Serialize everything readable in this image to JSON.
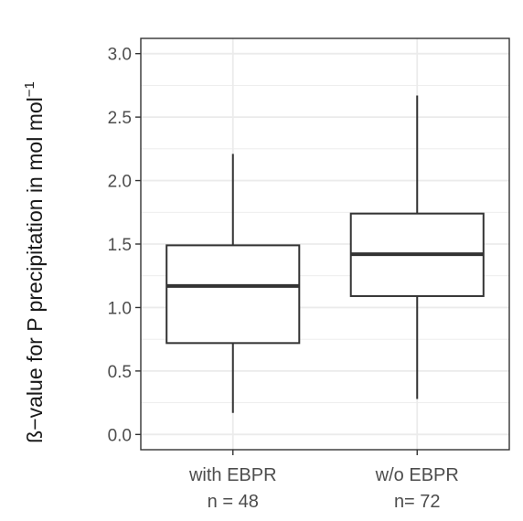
{
  "chart_data": {
    "type": "box",
    "ylabel": "ß−value for P precipitation in mol mol",
    "ylabel_superscript": "−1",
    "ylim": [
      -0.12,
      3.12
    ],
    "yticks": [
      "0.0",
      "0.5",
      "1.0",
      "1.5",
      "2.0",
      "2.5",
      "3.0"
    ],
    "grid": true,
    "categories": [
      {
        "name": "with EBPR",
        "n_label": "n = 48",
        "whisker_low": 0.17,
        "q1": 0.72,
        "median": 1.17,
        "q3": 1.49,
        "whisker_high": 2.21
      },
      {
        "name": "w/o EBPR",
        "n_label": "n= 72",
        "whisker_low": 0.28,
        "q1": 1.09,
        "median": 1.42,
        "q3": 1.74,
        "whisker_high": 2.67
      }
    ],
    "colors": {
      "box_line": "#333333",
      "grid": "#ebebeb",
      "panel_border": "#333333",
      "box_fill": "#ffffff"
    }
  }
}
